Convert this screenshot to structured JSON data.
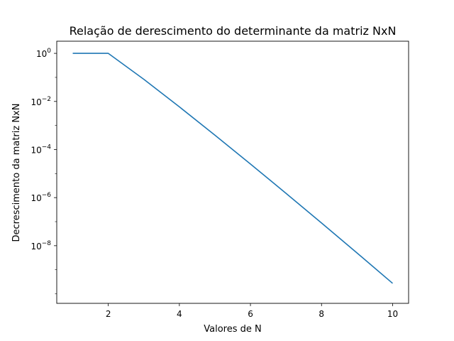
{
  "chart_data": {
    "type": "line",
    "title": "Relação de derescimento do determinante da matriz NxN",
    "xlabel": "Valores de N",
    "ylabel": "Decrescimento da matriz NxN",
    "xscale": "linear",
    "yscale": "log",
    "xlim": [
      0.55,
      10.45
    ],
    "ylim": [
      4e-11,
      3.2
    ],
    "grid": false,
    "x": [
      1,
      2,
      3,
      4,
      5,
      6,
      7,
      8,
      9,
      10
    ],
    "series": [
      {
        "color": "#1f77b4",
        "values": [
          1.0,
          1.0,
          0.083333,
          0.005952,
          0.0003968,
          2.505e-05,
          1.512e-06,
          8.802e-08,
          4.965e-09,
          2.724e-10
        ]
      }
    ],
    "xticks": [
      {
        "value": 2,
        "label": "2"
      },
      {
        "value": 4,
        "label": "4"
      },
      {
        "value": 6,
        "label": "6"
      },
      {
        "value": 8,
        "label": "8"
      },
      {
        "value": 10,
        "label": "10"
      }
    ],
    "yticks": [
      {
        "value": 1,
        "base": "10",
        "exp": "0"
      },
      {
        "value": 0.01,
        "base": "10",
        "exp": "−2"
      },
      {
        "value": 0.0001,
        "base": "10",
        "exp": "−4"
      },
      {
        "value": 1e-06,
        "base": "10",
        "exp": "−6"
      },
      {
        "value": 1e-08,
        "base": "10",
        "exp": "−8"
      }
    ]
  }
}
